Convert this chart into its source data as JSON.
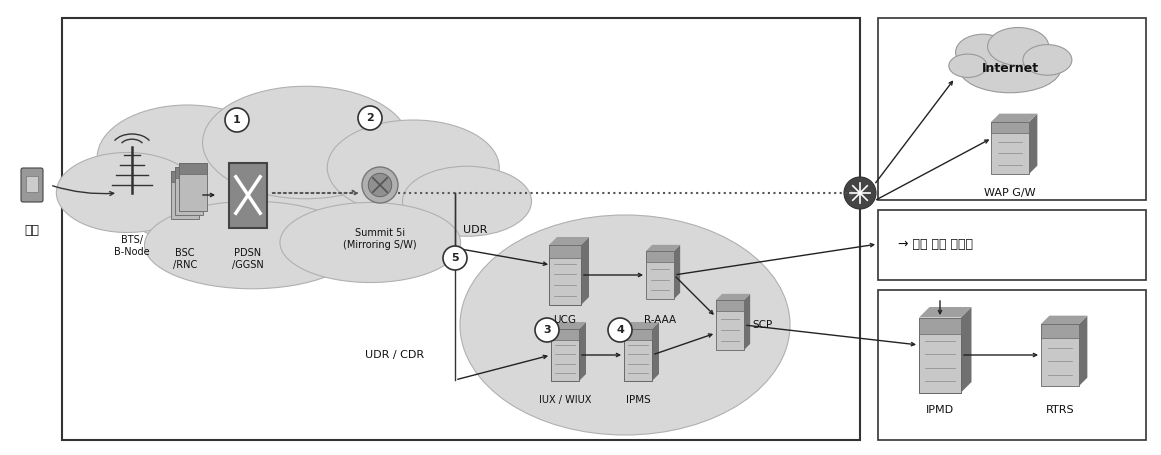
{
  "bg": "#ffffff",
  "main_box_edge": "#333333",
  "cloud_fill": "#d8d8d8",
  "oval_fill": "#d0d0d0",
  "server_light": "#c8c8c8",
  "server_mid": "#a0a0a0",
  "server_dark": "#707070",
  "arrow_color": "#222222",
  "dot_color": "#555555",
  "text_color": "#111111",
  "labels": {
    "danmal": "단말",
    "bts": "BTS/\nB-Node",
    "bsc": "BSC\n/RNC",
    "pdsn": "PDSN\n/GGSN",
    "summit": "Summit 5i\n(Mirroring S/W)",
    "ucg": "UCG",
    "raaa": "R-AAA",
    "iux": "IUX / WIUX",
    "ipms": "IPMS",
    "scp": "SCP",
    "internet": "Internet",
    "wap": "WAP G/W",
    "roaming": "해외 로밍 사업자",
    "ipmd": "IPMD",
    "rtrs": "RTRS",
    "udr": "UDR",
    "udr_cdr": "UDR / CDR"
  },
  "nums": [
    1,
    2,
    3,
    4,
    5
  ]
}
